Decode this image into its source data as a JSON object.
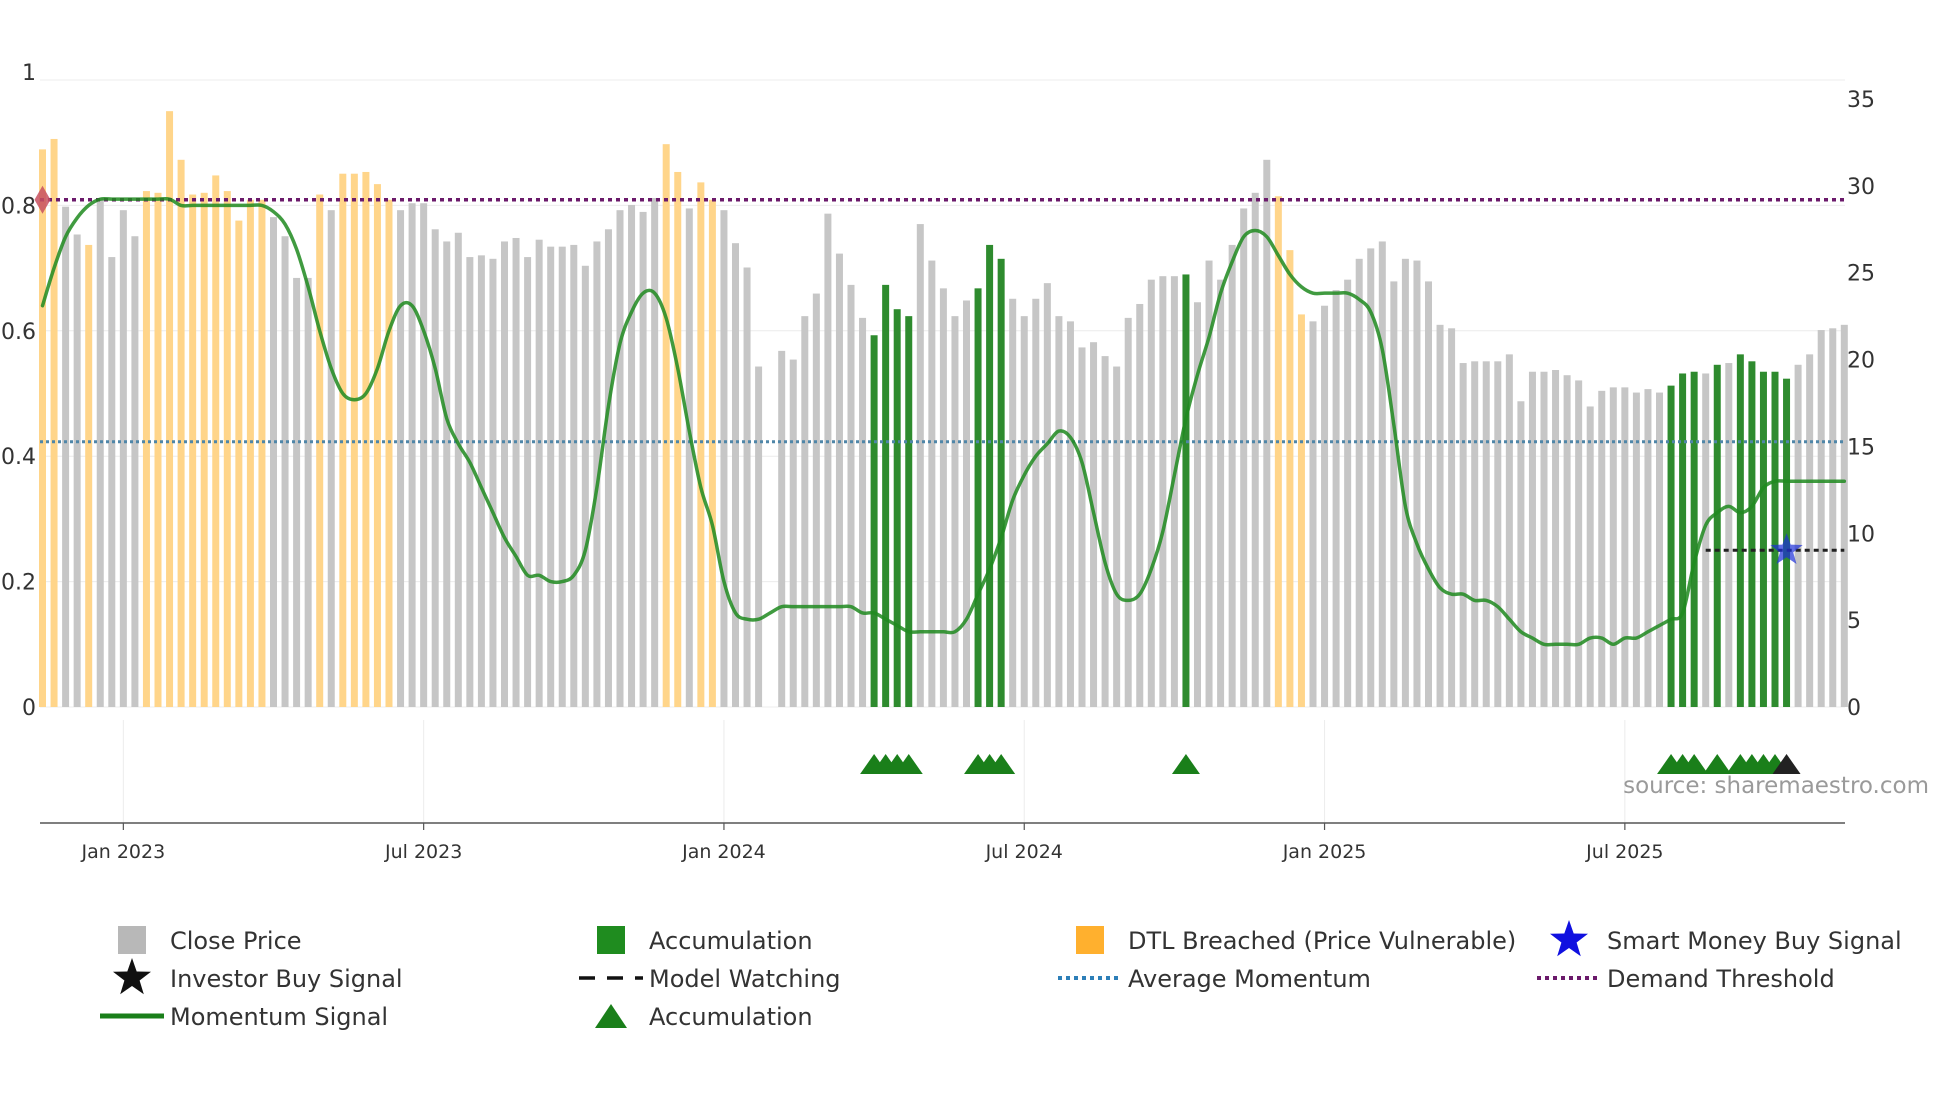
{
  "chart_data": {
    "type": "bar",
    "left_axis": {
      "ticks": [
        "0",
        "0.2",
        "0.4",
        "0.6",
        "0.8",
        "1"
      ],
      "ylim": [
        0,
        1
      ]
    },
    "right_axis": {
      "ticks": [
        "0",
        "5",
        "10",
        "15",
        "20",
        "25",
        "30",
        "35"
      ],
      "ylim": [
        0,
        35
      ]
    },
    "x_ticks": [
      "Jan 2023",
      "Jul 2023",
      "Jan 2024",
      "Jul 2024",
      "Jan 2025",
      "Jul 2025"
    ],
    "x_tick_positions_week": [
      7,
      33,
      59,
      85,
      111,
      137
    ],
    "bar_count": 157,
    "close_price": [
      32.1,
      32.7,
      28.8,
      27.2,
      26.6,
      29.3,
      25.9,
      28.6,
      27.1,
      29.7,
      29.6,
      34.3,
      31.5,
      29.5,
      29.6,
      30.6,
      29.7,
      28.0,
      29.2,
      29.2,
      28.2,
      27.1,
      24.7,
      24.7,
      29.5,
      28.6,
      30.7,
      30.7,
      30.8,
      30.1,
      29.2,
      28.6,
      29.0,
      29.0,
      27.5,
      26.8,
      27.3,
      25.9,
      26.0,
      25.8,
      26.8,
      27.0,
      25.9,
      26.9,
      26.5,
      26.5,
      26.6,
      25.4,
      26.8,
      27.5,
      28.6,
      28.9,
      28.5,
      29.3,
      32.4,
      30.8,
      28.7,
      30.2,
      29.2,
      28.6,
      26.7,
      25.3,
      19.6,
      0.0,
      20.5,
      20.0,
      22.5,
      23.8,
      28.4,
      26.1,
      24.3,
      22.4,
      21.4,
      24.3,
      22.9,
      22.5,
      27.8,
      25.7,
      24.1,
      22.5,
      23.4,
      24.1,
      26.6,
      25.8,
      23.5,
      22.5,
      23.5,
      24.4,
      22.5,
      22.2,
      20.7,
      21.0,
      20.2,
      19.6,
      22.4,
      23.2,
      24.6,
      24.8,
      24.8,
      24.9,
      23.3,
      25.7,
      24.6,
      26.6,
      28.7,
      29.6,
      31.5,
      29.4,
      26.3,
      22.6,
      22.2,
      23.1,
      24.0,
      24.6,
      25.8,
      26.4,
      26.8,
      24.5,
      25.8,
      25.7,
      24.5,
      22.0,
      21.8,
      19.8,
      19.9,
      19.9,
      19.9,
      20.3,
      17.6,
      19.3,
      19.3,
      19.4,
      19.1,
      18.8,
      17.3,
      18.2,
      18.4,
      18.4,
      18.1,
      18.3,
      18.1,
      18.5,
      19.2,
      19.3,
      19.2,
      19.7,
      19.8,
      20.3,
      19.9,
      19.3,
      19.3,
      18.9,
      19.7,
      20.3,
      21.7,
      21.8,
      22.0
    ],
    "dtl_breached_weeks": [
      0,
      1,
      4,
      9,
      10,
      11,
      12,
      13,
      14,
      15,
      16,
      17,
      18,
      19,
      24,
      26,
      27,
      28,
      29,
      30,
      54,
      55,
      57,
      58,
      107,
      108,
      109
    ],
    "accumulation_weeks": [
      72,
      73,
      74,
      75,
      81,
      82,
      83,
      99,
      141,
      142,
      143,
      145,
      147,
      148,
      149,
      150,
      151
    ],
    "momentum_signal": [
      0.64,
      0.7,
      0.75,
      0.78,
      0.8,
      0.81,
      0.81,
      0.81,
      0.81,
      0.81,
      0.81,
      0.81,
      0.8,
      0.8,
      0.8,
      0.8,
      0.8,
      0.8,
      0.8,
      0.8,
      0.79,
      0.77,
      0.73,
      0.67,
      0.6,
      0.54,
      0.5,
      0.49,
      0.5,
      0.54,
      0.6,
      0.64,
      0.64,
      0.6,
      0.54,
      0.46,
      0.42,
      0.39,
      0.35,
      0.31,
      0.27,
      0.24,
      0.21,
      0.21,
      0.2,
      0.2,
      0.21,
      0.25,
      0.35,
      0.48,
      0.58,
      0.63,
      0.66,
      0.66,
      0.62,
      0.54,
      0.44,
      0.35,
      0.29,
      0.2,
      0.15,
      0.14,
      0.14,
      0.15,
      0.16,
      0.16,
      0.16,
      0.16,
      0.16,
      0.16,
      0.16,
      0.15,
      0.15,
      0.14,
      0.13,
      0.12,
      0.12,
      0.12,
      0.12,
      0.12,
      0.14,
      0.18,
      0.22,
      0.27,
      0.33,
      0.37,
      0.4,
      0.42,
      0.44,
      0.43,
      0.39,
      0.31,
      0.23,
      0.18,
      0.17,
      0.18,
      0.22,
      0.28,
      0.37,
      0.46,
      0.53,
      0.59,
      0.66,
      0.71,
      0.75,
      0.76,
      0.75,
      0.72,
      0.69,
      0.67,
      0.66,
      0.66,
      0.66,
      0.66,
      0.65,
      0.63,
      0.57,
      0.45,
      0.32,
      0.26,
      0.22,
      0.19,
      0.18,
      0.18,
      0.17,
      0.17,
      0.16,
      0.14,
      0.12,
      0.11,
      0.1,
      0.1,
      0.1,
      0.1,
      0.11,
      0.11,
      0.1,
      0.11,
      0.11,
      0.12,
      0.13,
      0.14,
      0.15,
      0.23,
      0.29,
      0.31,
      0.32,
      0.31,
      0.32,
      0.35,
      0.36,
      0.36,
      0.36,
      0.36,
      0.36,
      0.36,
      0.36
    ],
    "average_momentum": 0.423,
    "demand_threshold": 0.809,
    "model_watching": {
      "start_week": 144,
      "end_week": 156,
      "value": 0.25
    },
    "smart_money_buy_signal": {
      "week": 151,
      "value": 0.25
    },
    "investor_buy_signal_weeks": [
      151
    ],
    "accumulation_marker_weeks": [
      72,
      73,
      74,
      75,
      81,
      82,
      83,
      99,
      141,
      142,
      143,
      145,
      147,
      148,
      149,
      150
    ],
    "demand_marker_week": 0,
    "source": "source: sharemaestro.com",
    "colors": {
      "close_price": "#c6c6c6",
      "accumulation": "#2e8b2e",
      "dtl_breached": "#ffd58a",
      "momentum": "#1f8a1f",
      "average_momentum": "#4f86a8",
      "demand_threshold": "#6b1a6b",
      "smart_money": "#1d2fd8",
      "investor": "#111111",
      "marker": "#1a7f1a"
    },
    "legend": [
      {
        "label": "Close Price",
        "symbol": "square",
        "color": "#b8b8b8"
      },
      {
        "label": "Accumulation",
        "symbol": "square",
        "color": "#1f8c1f"
      },
      {
        "label": "DTL Breached (Price Vulnerable)",
        "symbol": "square",
        "color": "#ffb02e"
      },
      {
        "label": "Smart Money Buy Signal",
        "symbol": "star",
        "color": "#1010e0"
      },
      {
        "label": "Investor Buy Signal",
        "symbol": "star",
        "color": "#111111"
      },
      {
        "label": "Model Watching",
        "symbol": "dash",
        "color": "#111111"
      },
      {
        "label": "Average Momentum",
        "symbol": "dot",
        "color": "#2d7fb8"
      },
      {
        "label": "Demand Threshold",
        "symbol": "dot",
        "color": "#6b1a6b"
      },
      {
        "label": "Momentum Signal",
        "symbol": "line",
        "color": "#1a7f1a"
      },
      {
        "label": "Accumulation",
        "symbol": "triangle",
        "color": "#1a7f1a"
      }
    ]
  }
}
